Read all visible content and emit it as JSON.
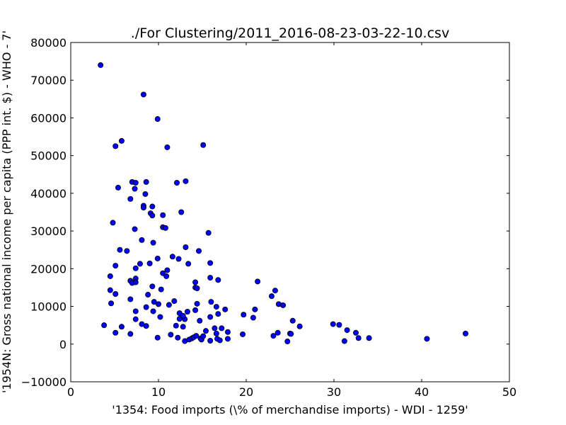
{
  "chart_data": {
    "type": "scatter",
    "title": "./For Clustering/2011_2016-08-23-03-22-10.csv",
    "xlabel": "'1354: Food imports  (\\% of merchandise imports) - WDI - 1259'",
    "ylabel": "'1954N: Gross national income per capita (PPP int. $) - WHO - 7'",
    "xlim": [
      0,
      50
    ],
    "ylim": [
      -10000,
      80000
    ],
    "xticks": [
      "0",
      "10",
      "20",
      "30",
      "40",
      "50"
    ],
    "yticks": [
      "−10000",
      "0",
      "10000",
      "20000",
      "30000",
      "40000",
      "50000",
      "60000",
      "70000",
      "80000"
    ],
    "grid": false,
    "marker_color": "#0000ff",
    "marker_edge_color": "#000000",
    "points": [
      [
        3.4,
        74000
      ],
      [
        8.3,
        66200
      ],
      [
        9.9,
        59700
      ],
      [
        5.8,
        53900
      ],
      [
        5.1,
        52500
      ],
      [
        11.0,
        52200
      ],
      [
        15.1,
        52800
      ],
      [
        5.4,
        41500
      ],
      [
        7.0,
        43000
      ],
      [
        7.4,
        42800
      ],
      [
        8.6,
        43000
      ],
      [
        12.1,
        42800
      ],
      [
        13.1,
        43200
      ],
      [
        7.3,
        41200
      ],
      [
        8.5,
        39800
      ],
      [
        6.8,
        38500
      ],
      [
        8.3,
        36700
      ],
      [
        8.3,
        36200
      ],
      [
        9.3,
        36500
      ],
      [
        9.1,
        34700
      ],
      [
        9.3,
        34100
      ],
      [
        10.5,
        34200
      ],
      [
        12.6,
        35000
      ],
      [
        4.8,
        32200
      ],
      [
        10.5,
        31000
      ],
      [
        10.8,
        30800
      ],
      [
        7.3,
        30500
      ],
      [
        15.7,
        29500
      ],
      [
        8.1,
        27600
      ],
      [
        9.4,
        26900
      ],
      [
        13.1,
        25700
      ],
      [
        5.6,
        25000
      ],
      [
        6.4,
        24700
      ],
      [
        14.6,
        24700
      ],
      [
        11.6,
        23200
      ],
      [
        12.3,
        22600
      ],
      [
        9.9,
        22700
      ],
      [
        7.9,
        21300
      ],
      [
        9.0,
        21400
      ],
      [
        13.4,
        21300
      ],
      [
        15.9,
        21500
      ],
      [
        5.1,
        20800
      ],
      [
        7.4,
        20100
      ],
      [
        11.0,
        19600
      ],
      [
        10.5,
        18800
      ],
      [
        10.9,
        18000
      ],
      [
        4.5,
        18000
      ],
      [
        15.9,
        17600
      ],
      [
        16.8,
        17000
      ],
      [
        7.4,
        17400
      ],
      [
        6.8,
        16800
      ],
      [
        7.0,
        16200
      ],
      [
        7.4,
        16400
      ],
      [
        21.3,
        16600
      ],
      [
        14.2,
        16400
      ],
      [
        14.2,
        15000
      ],
      [
        14.4,
        14800
      ],
      [
        9.3,
        15300
      ],
      [
        10.3,
        14500
      ],
      [
        4.5,
        14300
      ],
      [
        5.1,
        13300
      ],
      [
        8.8,
        13100
      ],
      [
        23.3,
        14200
      ],
      [
        22.9,
        12700
      ],
      [
        6.8,
        11900
      ],
      [
        9.5,
        11200
      ],
      [
        11.8,
        11400
      ],
      [
        16.0,
        11200
      ],
      [
        4.6,
        10800
      ],
      [
        10.0,
        10600
      ],
      [
        11.2,
        10400
      ],
      [
        14.4,
        10700
      ],
      [
        23.7,
        10600
      ],
      [
        24.2,
        10300
      ],
      [
        16.6,
        9900
      ],
      [
        8.6,
        9800
      ],
      [
        17.6,
        9200
      ],
      [
        21.0,
        9200
      ],
      [
        7.4,
        8700
      ],
      [
        9.4,
        8700
      ],
      [
        13.3,
        8600
      ],
      [
        14.2,
        9000
      ],
      [
        12.4,
        8200
      ],
      [
        16.8,
        8000
      ],
      [
        19.7,
        7800
      ],
      [
        15.9,
        7200
      ],
      [
        10.2,
        7200
      ],
      [
        12.4,
        6700
      ],
      [
        13.0,
        6600
      ],
      [
        12.8,
        7500
      ],
      [
        20.8,
        7000
      ],
      [
        25.3,
        6200
      ],
      [
        7.4,
        6600
      ],
      [
        14.7,
        6200
      ],
      [
        8.1,
        5300
      ],
      [
        3.8,
        5000
      ],
      [
        5.8,
        4600
      ],
      [
        8.6,
        4800
      ],
      [
        12.0,
        4900
      ],
      [
        12.8,
        4600
      ],
      [
        26.1,
        4700
      ],
      [
        29.9,
        5300
      ],
      [
        30.6,
        5100
      ],
      [
        16.4,
        4200
      ],
      [
        17.2,
        4200
      ],
      [
        31.5,
        3700
      ],
      [
        5.1,
        3000
      ],
      [
        6.8,
        2700
      ],
      [
        11.4,
        2500
      ],
      [
        15.4,
        3500
      ],
      [
        16.6,
        2800
      ],
      [
        17.9,
        3200
      ],
      [
        19.6,
        2600
      ],
      [
        23.1,
        2200
      ],
      [
        23.6,
        3000
      ],
      [
        25.0,
        2800
      ],
      [
        25.1,
        2700
      ],
      [
        32.5,
        3000
      ],
      [
        45.0,
        2800
      ],
      [
        9.9,
        1700
      ],
      [
        12.2,
        1700
      ],
      [
        13.0,
        800
      ],
      [
        13.5,
        1200
      ],
      [
        13.8,
        1500
      ],
      [
        14.0,
        1800
      ],
      [
        14.3,
        2200
      ],
      [
        14.8,
        1500
      ],
      [
        14.9,
        1200
      ],
      [
        15.1,
        2100
      ],
      [
        15.9,
        900
      ],
      [
        16.7,
        1400
      ],
      [
        17.0,
        1000
      ],
      [
        17.9,
        1400
      ],
      [
        24.7,
        700
      ],
      [
        31.2,
        800
      ],
      [
        32.8,
        1600
      ],
      [
        34.0,
        1600
      ],
      [
        40.6,
        1400
      ]
    ]
  }
}
